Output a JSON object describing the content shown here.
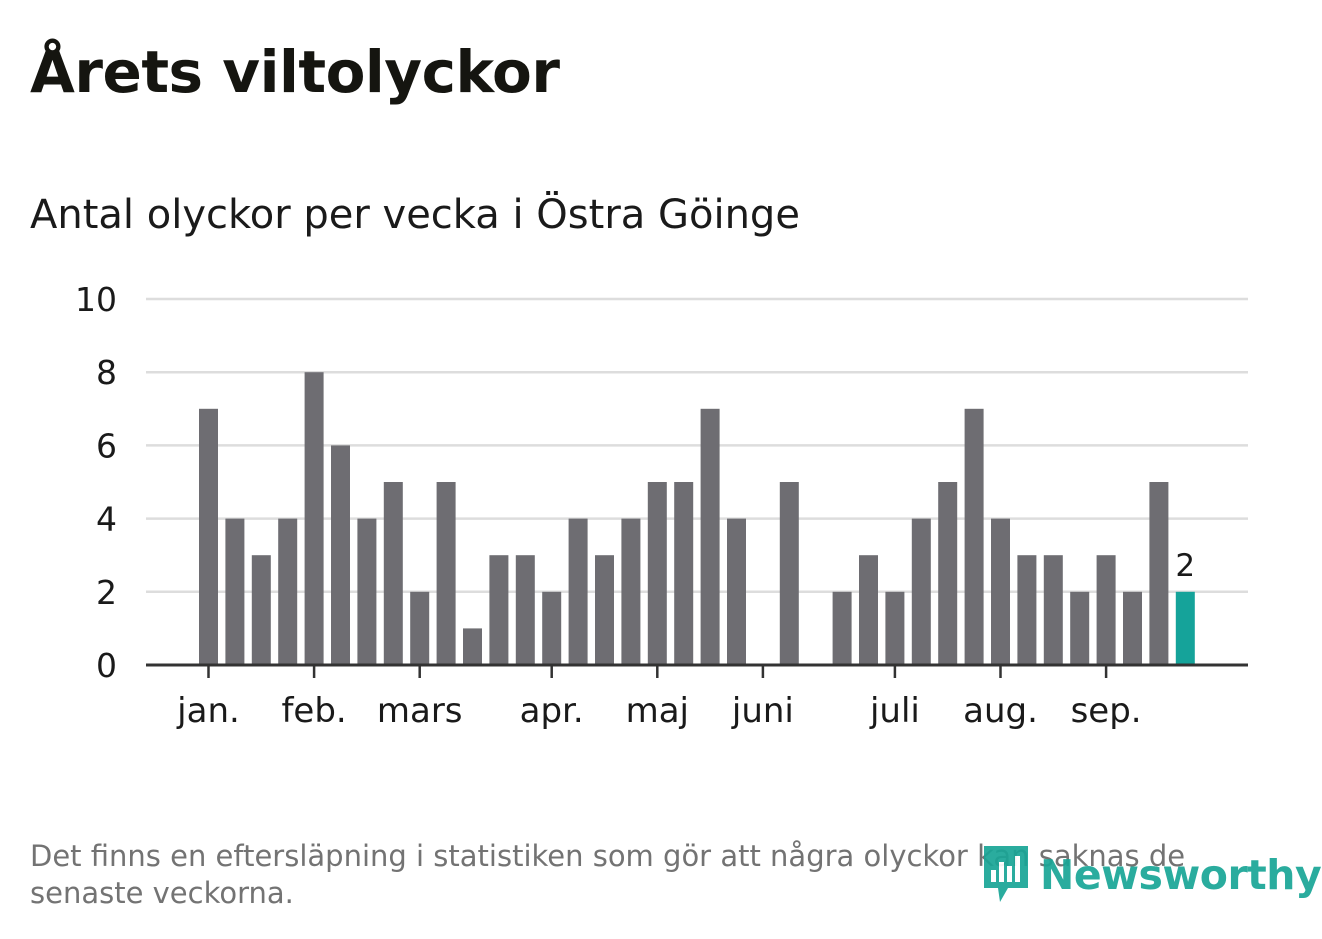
{
  "title": "Årets viltolyckor",
  "subtitle": "Antal olyckor per vecka i Östra Göinge",
  "footnote": "Det finns en eftersläpning i statistiken som gör att några olyckor kan saknas de senaste veckorna.",
  "logo": {
    "text": "Newsworthy",
    "icon": "bar-chart-speech-bubble-icon"
  },
  "colors": {
    "bar": "#6e6d72",
    "highlight": "#15a39a",
    "grid": "#dddddd",
    "axis": "#333333",
    "text": "#1a1a1a"
  },
  "chart_data": {
    "type": "bar",
    "title": "Antal olyckor per vecka i Östra Göinge",
    "xlabel": "",
    "ylabel": "",
    "ylim": [
      0,
      10
    ],
    "yticks": [
      0,
      2,
      4,
      6,
      8,
      10
    ],
    "grid": true,
    "weeks": [
      1,
      2,
      3,
      4,
      5,
      6,
      7,
      8,
      9,
      10,
      11,
      12,
      13,
      14,
      15,
      16,
      17,
      18,
      19,
      20,
      21,
      22,
      23,
      24,
      25,
      26,
      27,
      28,
      29,
      30,
      31,
      32,
      33,
      34,
      35,
      36,
      37,
      38
    ],
    "values": [
      7,
      4,
      3,
      4,
      8,
      6,
      4,
      5,
      2,
      5,
      1,
      3,
      3,
      2,
      4,
      3,
      4,
      5,
      5,
      7,
      4,
      0,
      5,
      0,
      2,
      3,
      2,
      4,
      5,
      7,
      4,
      3,
      3,
      2,
      3,
      2,
      5,
      2
    ],
    "highlight_index": 37,
    "highlight_label": "2",
    "month_ticks": [
      {
        "label": "jan.",
        "week": 1
      },
      {
        "label": "feb.",
        "week": 5
      },
      {
        "label": "mars",
        "week": 9
      },
      {
        "label": "apr.",
        "week": 14
      },
      {
        "label": "maj",
        "week": 18
      },
      {
        "label": "juni",
        "week": 22
      },
      {
        "label": "juli",
        "week": 27
      },
      {
        "label": "aug.",
        "week": 31
      },
      {
        "label": "sep.",
        "week": 35
      }
    ]
  }
}
